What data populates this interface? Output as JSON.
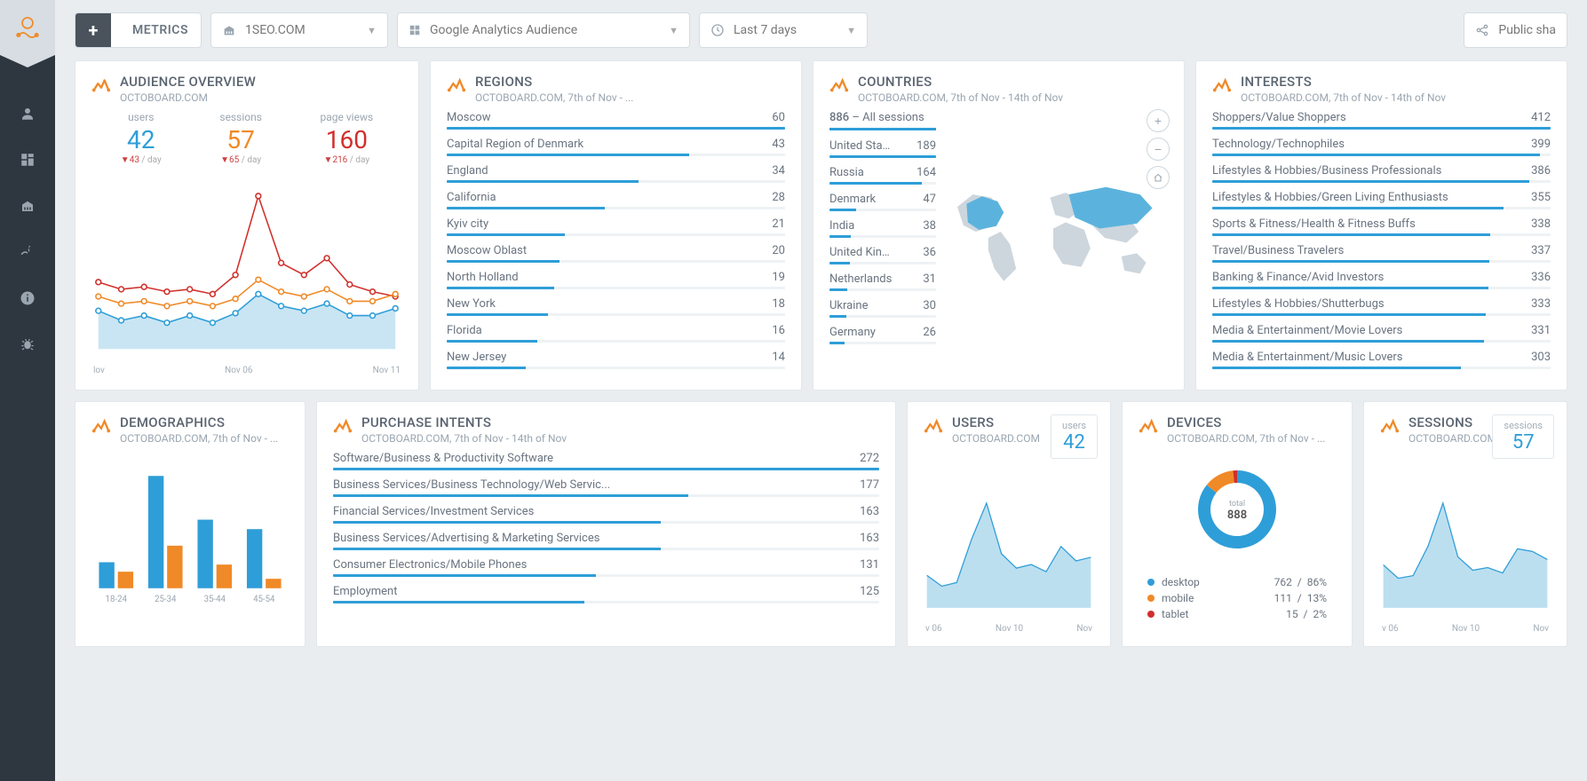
{
  "colors": {
    "blue": "#2e9ed8",
    "orange": "#f08927",
    "red": "#d0302b",
    "area_fill": "#bcdff0",
    "bar_blue": "#2e9ed8",
    "bar_orange": "#f08927",
    "gray_line": "#e1e7ec",
    "text_gray": "#9ba6b1"
  },
  "toolbar": {
    "metrics_label": "METRICS",
    "site_label": "1SEO.COM",
    "source_label": "Google Analytics Audience",
    "range_label": "Last 7 days",
    "share_label": "Public sha"
  },
  "overview": {
    "title": "AUDIENCE OVERVIEW",
    "subtitle": "OCTOBOARD.COM",
    "metrics": [
      {
        "label": "users",
        "value": "42",
        "color": "blue",
        "change": "▼43",
        "suffix": " / day"
      },
      {
        "label": "sessions",
        "value": "57",
        "color": "orange",
        "change": "▼65",
        "suffix": " / day"
      },
      {
        "label": "page views",
        "value": "160",
        "color": "red",
        "change": "▼216",
        "suffix": " / day"
      }
    ],
    "chart": {
      "x_labels": [
        "lov",
        "Nov 06",
        "Nov 11"
      ],
      "series": [
        {
          "color": "#d0302b",
          "values": [
            56,
            50,
            52,
            48,
            50,
            46,
            62,
            128,
            72,
            62,
            76,
            54,
            48,
            44
          ]
        },
        {
          "color": "#f08927",
          "values": [
            44,
            38,
            40,
            36,
            40,
            36,
            42,
            58,
            48,
            44,
            50,
            40,
            40,
            46
          ]
        },
        {
          "color": "#2e9ed8",
          "values": [
            32,
            24,
            28,
            22,
            28,
            22,
            30,
            46,
            36,
            32,
            38,
            28,
            28,
            34
          ]
        }
      ],
      "y_max": 140
    }
  },
  "regions": {
    "title": "REGIONS",
    "subtitle": "OCTOBOARD.COM, 7th of Nov - ...",
    "max": 60,
    "items": [
      {
        "label": "Moscow",
        "value": 60
      },
      {
        "label": "Capital Region of Denmark",
        "value": 43
      },
      {
        "label": "England",
        "value": 34
      },
      {
        "label": "California",
        "value": 28
      },
      {
        "label": "Kyiv city",
        "value": 21
      },
      {
        "label": "Moscow Oblast",
        "value": 20
      },
      {
        "label": "North Holland",
        "value": 19
      },
      {
        "label": "New York",
        "value": 18
      },
      {
        "label": "Florida",
        "value": 16
      },
      {
        "label": "New Jersey",
        "value": 14
      }
    ]
  },
  "countries": {
    "title": "COUNTRIES",
    "subtitle": "OCTOBOARD.COM, 7th of Nov - 14th of Nov",
    "total": "886",
    "total_label": " – All sessions",
    "max": 189,
    "items": [
      {
        "label": "United Stat...",
        "value": 189
      },
      {
        "label": "Russia",
        "value": 164
      },
      {
        "label": "Denmark",
        "value": 47
      },
      {
        "label": "India",
        "value": 38
      },
      {
        "label": "United King...",
        "value": 36
      },
      {
        "label": "Netherlands",
        "value": 31
      },
      {
        "label": "Ukraine",
        "value": 30
      },
      {
        "label": "Germany",
        "value": 26
      }
    ]
  },
  "interests": {
    "title": "INTERESTS",
    "subtitle": "OCTOBOARD.COM, 7th of Nov - 14th of Nov",
    "max": 412,
    "items": [
      {
        "label": "Shoppers/Value Shoppers",
        "value": 412
      },
      {
        "label": "Technology/Technophiles",
        "value": 399
      },
      {
        "label": "Lifestyles & Hobbies/Business Professionals",
        "value": 386
      },
      {
        "label": "Lifestyles & Hobbies/Green Living Enthusiasts",
        "value": 355
      },
      {
        "label": "Sports & Fitness/Health & Fitness Buffs",
        "value": 338
      },
      {
        "label": "Travel/Business Travelers",
        "value": 337
      },
      {
        "label": "Banking & Finance/Avid Investors",
        "value": 336
      },
      {
        "label": "Lifestyles & Hobbies/Shutterbugs",
        "value": 333
      },
      {
        "label": "Media & Entertainment/Movie Lovers",
        "value": 331
      },
      {
        "label": "Media & Entertainment/Music Lovers",
        "value": 303
      }
    ]
  },
  "demographics": {
    "title": "DEMOGRAPHICS",
    "subtitle": "OCTOBOARD.COM, 7th of Nov - ...",
    "x_labels": [
      "18-24",
      "25-34",
      "35-44",
      "45-54"
    ],
    "y_max": 100,
    "bars": [
      {
        "blue": 22,
        "orange": 14
      },
      {
        "blue": 95,
        "orange": 36
      },
      {
        "blue": 58,
        "orange": 20
      },
      {
        "blue": 50,
        "orange": 8
      }
    ]
  },
  "purchase": {
    "title": "PURCHASE INTENTS",
    "subtitle": "OCTOBOARD.COM, 7th of Nov - 14th of Nov",
    "max": 272,
    "items": [
      {
        "label": "Software/Business & Productivity Software",
        "value": 272
      },
      {
        "label": "Business Services/Business Technology/Web Servic...",
        "value": 177
      },
      {
        "label": "Financial Services/Investment Services",
        "value": 163
      },
      {
        "label": "Business Services/Advertising & Marketing Services",
        "value": 163
      },
      {
        "label": "Consumer Electronics/Mobile Phones",
        "value": 131
      },
      {
        "label": "Employment",
        "value": 125
      }
    ]
  },
  "users": {
    "title": "USERS",
    "subtitle": "OCTOBOARD.COM",
    "badge_label": "users",
    "badge_value": "42",
    "x_labels": [
      "v 06",
      "Nov 10",
      "Nov"
    ],
    "values": [
      18,
      12,
      14,
      38,
      58,
      30,
      22,
      24,
      20,
      34,
      26,
      28
    ]
  },
  "devices": {
    "title": "DEVICES",
    "subtitle": "OCTOBOARD.COM, 7th of Nov - ...",
    "total_label": "total",
    "total": "888",
    "slices": [
      {
        "label": "desktop",
        "value": 762,
        "pct": "86%",
        "color": "#2e9ed8"
      },
      {
        "label": "mobile",
        "value": 111,
        "pct": "13%",
        "color": "#f08927"
      },
      {
        "label": "tablet",
        "value": 15,
        "pct": "2%",
        "color": "#d0302b"
      }
    ]
  },
  "sessions": {
    "title": "SESSIONS",
    "subtitle": "OCTOBOARD.COM",
    "badge_label": "sessions",
    "badge_value": "57",
    "x_labels": [
      "v 06",
      "Nov 10",
      "Nov"
    ],
    "values": [
      32,
      22,
      24,
      46,
      78,
      38,
      28,
      30,
      26,
      44,
      42,
      36
    ]
  }
}
